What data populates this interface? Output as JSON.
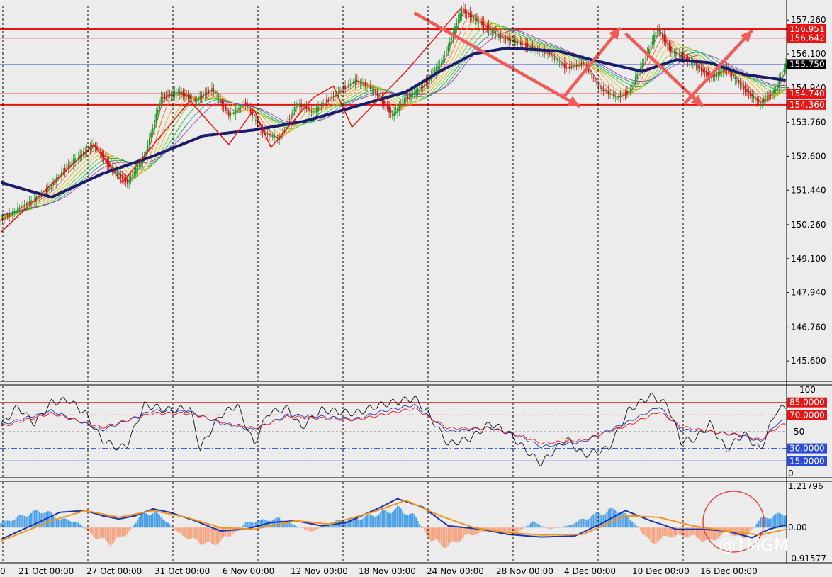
{
  "colors": {
    "background": "#ececec",
    "grid": "#000000",
    "hline_red": "#e61414",
    "hline_blue": "#2a4bd8",
    "arrow": "#f25a5a",
    "ma_slow": "#1c1c6e",
    "macd_line": "#1d34b0",
    "signal_line": "#f0961e",
    "hist_pos": "#4aa0e6",
    "hist_neg": "#f4a582",
    "bull": "#1a9a2a",
    "bear": "#c81414"
  },
  "price_axis": {
    "ticks": [
      "157.260",
      "156.100",
      "154.940",
      "153.760",
      "152.600",
      "151.440",
      "150.260",
      "149.100",
      "147.940",
      "146.760",
      "145.600"
    ],
    "range": [
      144.9,
      157.75
    ]
  },
  "price_levels": [
    {
      "label": "156.951",
      "value": 156.951,
      "bold": true
    },
    {
      "label": "156.642",
      "value": 156.642,
      "bold": false
    },
    {
      "label": "154.740",
      "value": 154.74,
      "bold": false
    },
    {
      "label": "154.360",
      "value": 154.36,
      "bold": true
    }
  ],
  "current_price": {
    "label": "155.750",
    "value": 155.75
  },
  "x_axis": {
    "labels": [
      "21 Oct 00:00",
      "27 Oct 00:00",
      "31 Oct 00:00",
      "6 Nov 00:00",
      "12 Nov 00:00",
      "18 Nov 00:00",
      "24 Nov 00:00",
      "28 Nov 00:00",
      "4 Dec 00:00",
      "10 Dec 00:00",
      "16 Dec 00:00"
    ],
    "first_label": "0"
  },
  "stoch_axis": {
    "labels": [
      "100",
      "50",
      "0"
    ],
    "levels": [
      {
        "label": "85.0000",
        "value": 85,
        "color": "#e61414",
        "style": "solid"
      },
      {
        "label": "70.0000",
        "value": 70,
        "color": "#e61414",
        "style": "dashdot"
      },
      {
        "label": "30.0000",
        "value": 30,
        "color": "#2a4bd8",
        "style": "dashdot"
      },
      {
        "label": "15.0000",
        "value": 15,
        "color": "#2a4bd8",
        "style": "solid"
      }
    ]
  },
  "macd_axis": {
    "labels": [
      "1.21796",
      "0.00",
      "-0.91577"
    ]
  },
  "watermark": "@TMGM",
  "chart_data": [
    {
      "type": "candlestick",
      "title": "",
      "xlabel": "",
      "ylabel": "",
      "ylim": [
        144.9,
        157.75
      ],
      "x": [
        "21 Oct",
        "27 Oct",
        "31 Oct",
        "6 Nov",
        "12 Nov",
        "18 Nov",
        "24 Nov",
        "28 Nov",
        "4 Dec",
        "10 Dec",
        "16 Dec"
      ],
      "anchors_close": [
        [
          0,
          150.4
        ],
        [
          10,
          150.8
        ],
        [
          25,
          151.3
        ],
        [
          40,
          152.3
        ],
        [
          55,
          153.0
        ],
        [
          65,
          152.2
        ],
        [
          75,
          151.7
        ],
        [
          85,
          152.6
        ],
        [
          95,
          154.6
        ],
        [
          105,
          154.8
        ],
        [
          115,
          154.5
        ],
        [
          125,
          154.9
        ],
        [
          135,
          154.0
        ],
        [
          145,
          154.4
        ],
        [
          155,
          153.4
        ],
        [
          165,
          153.2
        ],
        [
          175,
          154.4
        ],
        [
          185,
          154.1
        ],
        [
          195,
          154.6
        ],
        [
          210,
          155.2
        ],
        [
          220,
          154.9
        ],
        [
          232,
          154.0
        ],
        [
          240,
          154.6
        ],
        [
          250,
          155.0
        ],
        [
          262,
          155.9
        ],
        [
          273,
          157.6
        ],
        [
          283,
          157.2
        ],
        [
          295,
          156.7
        ],
        [
          305,
          156.5
        ],
        [
          315,
          156.3
        ],
        [
          325,
          156.1
        ],
        [
          335,
          155.6
        ],
        [
          345,
          155.8
        ],
        [
          355,
          154.9
        ],
        [
          365,
          154.6
        ],
        [
          372,
          154.8
        ],
        [
          382,
          156.0
        ],
        [
          389,
          156.95
        ],
        [
          397,
          156.2
        ],
        [
          410,
          155.8
        ],
        [
          420,
          155.3
        ],
        [
          430,
          155.6
        ],
        [
          440,
          154.9
        ],
        [
          450,
          154.4
        ],
        [
          459,
          154.9
        ],
        [
          465,
          155.75
        ]
      ],
      "moving_average_slow": [
        [
          0,
          151.7
        ],
        [
          30,
          151.2
        ],
        [
          60,
          152.0
        ],
        [
          90,
          152.6
        ],
        [
          120,
          153.3
        ],
        [
          150,
          153.5
        ],
        [
          180,
          153.8
        ],
        [
          210,
          154.3
        ],
        [
          240,
          154.8
        ],
        [
          260,
          155.5
        ],
        [
          280,
          156.1
        ],
        [
          300,
          156.3
        ],
        [
          330,
          156.2
        ],
        [
          350,
          155.9
        ],
        [
          380,
          155.5
        ],
        [
          400,
          155.9
        ],
        [
          420,
          155.8
        ],
        [
          440,
          155.4
        ],
        [
          465,
          155.2
        ]
      ]
    },
    {
      "type": "line",
      "title": "",
      "ylim": [
        0,
        100
      ],
      "series": [
        {
          "color": "#111111",
          "anchors": [
            [
              0,
              58
            ],
            [
              10,
              80
            ],
            [
              20,
              60
            ],
            [
              30,
              85
            ],
            [
              40,
              88
            ],
            [
              50,
              72
            ],
            [
              60,
              40
            ],
            [
              70,
              30
            ],
            [
              75,
              35
            ],
            [
              85,
              82
            ],
            [
              100,
              76
            ],
            [
              112,
              78
            ],
            [
              118,
              30
            ],
            [
              130,
              70
            ],
            [
              140,
              82
            ],
            [
              150,
              35
            ],
            [
              158,
              72
            ],
            [
              170,
              78
            ],
            [
              178,
              55
            ],
            [
              190,
              76
            ],
            [
              210,
              72
            ],
            [
              225,
              82
            ],
            [
              245,
              90
            ],
            [
              252,
              75
            ],
            [
              265,
              35
            ],
            [
              278,
              42
            ],
            [
              290,
              60
            ],
            [
              300,
              50
            ],
            [
              310,
              30
            ],
            [
              320,
              12
            ],
            [
              335,
              42
            ],
            [
              345,
              22
            ],
            [
              360,
              30
            ],
            [
              372,
              76
            ],
            [
              385,
              93
            ],
            [
              395,
              82
            ],
            [
              403,
              38
            ],
            [
              412,
              42
            ],
            [
              420,
              60
            ],
            [
              430,
              28
            ],
            [
              440,
              48
            ],
            [
              450,
              28
            ],
            [
              459,
              74
            ],
            [
              465,
              80
            ]
          ]
        },
        {
          "color": "#1d34b0",
          "anchors": [
            [
              0,
              58
            ],
            [
              30,
              75
            ],
            [
              60,
              52
            ],
            [
              90,
              75
            ],
            [
              112,
              74
            ],
            [
              130,
              60
            ],
            [
              150,
              52
            ],
            [
              170,
              70
            ],
            [
              190,
              68
            ],
            [
              210,
              65
            ],
            [
              225,
              74
            ],
            [
              245,
              82
            ],
            [
              265,
              50
            ],
            [
              290,
              55
            ],
            [
              310,
              42
            ],
            [
              320,
              32
            ],
            [
              345,
              38
            ],
            [
              372,
              62
            ],
            [
              390,
              80
            ],
            [
              403,
              52
            ],
            [
              420,
              50
            ],
            [
              440,
              45
            ],
            [
              450,
              38
            ],
            [
              459,
              58
            ],
            [
              465,
              65
            ]
          ]
        },
        {
          "color": "#e61414",
          "anchors": [
            [
              0,
              56
            ],
            [
              30,
              72
            ],
            [
              60,
              55
            ],
            [
              90,
              72
            ],
            [
              112,
              72
            ],
            [
              130,
              62
            ],
            [
              150,
              54
            ],
            [
              170,
              68
            ],
            [
              190,
              66
            ],
            [
              210,
              64
            ],
            [
              225,
              70
            ],
            [
              245,
              78
            ],
            [
              265,
              54
            ],
            [
              290,
              54
            ],
            [
              310,
              44
            ],
            [
              320,
              36
            ],
            [
              345,
              40
            ],
            [
              372,
              58
            ],
            [
              390,
              74
            ],
            [
              403,
              56
            ],
            [
              420,
              50
            ],
            [
              440,
              46
            ],
            [
              450,
              40
            ],
            [
              459,
              54
            ],
            [
              465,
              60
            ]
          ]
        }
      ]
    },
    {
      "type": "bar",
      "title": "",
      "ylim": [
        -0.91577,
        1.21796
      ],
      "histogram": [
        [
          0,
          0.15
        ],
        [
          15,
          0.45
        ],
        [
          25,
          0.6
        ],
        [
          35,
          0.3
        ],
        [
          45,
          0.2
        ],
        [
          55,
          -0.3
        ],
        [
          65,
          -0.55
        ],
        [
          75,
          -0.2
        ],
        [
          85,
          0.55
        ],
        [
          95,
          0.4
        ],
        [
          105,
          -0.2
        ],
        [
          115,
          -0.45
        ],
        [
          125,
          -0.6
        ],
        [
          135,
          -0.3
        ],
        [
          145,
          0.15
        ],
        [
          155,
          0.25
        ],
        [
          165,
          0.3
        ],
        [
          175,
          0.05
        ],
        [
          185,
          -0.15
        ],
        [
          195,
          0.2
        ],
        [
          215,
          0.35
        ],
        [
          235,
          0.65
        ],
        [
          245,
          0.4
        ],
        [
          255,
          -0.45
        ],
        [
          265,
          -0.65
        ],
        [
          275,
          -0.3
        ],
        [
          290,
          -0.1
        ],
        [
          305,
          -0.2
        ],
        [
          315,
          0.2
        ],
        [
          325,
          -0.05
        ],
        [
          335,
          0.05
        ],
        [
          350,
          0.4
        ],
        [
          365,
          0.65
        ],
        [
          375,
          0.2
        ],
        [
          385,
          -0.55
        ],
        [
          395,
          -0.3
        ],
        [
          410,
          -0.3
        ],
        [
          420,
          -0.5
        ],
        [
          430,
          -0.15
        ],
        [
          440,
          -0.4
        ],
        [
          450,
          0.3
        ],
        [
          465,
          0.5
        ]
      ],
      "series": [
        {
          "name": "",
          "color": "#1d34b0",
          "anchors": [
            [
              0,
              -0.35
            ],
            [
              20,
              0.1
            ],
            [
              35,
              0.45
            ],
            [
              50,
              0.5
            ],
            [
              60,
              0.35
            ],
            [
              70,
              0.25
            ],
            [
              80,
              0.35
            ],
            [
              90,
              0.55
            ],
            [
              100,
              0.45
            ],
            [
              115,
              0.2
            ],
            [
              130,
              -0.1
            ],
            [
              145,
              -0.05
            ],
            [
              160,
              0.15
            ],
            [
              175,
              0.2
            ],
            [
              190,
              0.05
            ],
            [
              205,
              0.15
            ],
            [
              225,
              0.6
            ],
            [
              235,
              0.85
            ],
            [
              250,
              0.6
            ],
            [
              265,
              0.05
            ],
            [
              285,
              -0.05
            ],
            [
              300,
              -0.2
            ],
            [
              320,
              -0.28
            ],
            [
              340,
              -0.25
            ],
            [
              355,
              0.1
            ],
            [
              370,
              0.5
            ],
            [
              385,
              0.2
            ],
            [
              400,
              -0.05
            ],
            [
              415,
              -0.05
            ],
            [
              430,
              -0.1
            ],
            [
              445,
              -0.3
            ],
            [
              455,
              -0.05
            ],
            [
              465,
              0.08
            ]
          ]
        },
        {
          "name": "",
          "color": "#f0961e",
          "anchors": [
            [
              0,
              -0.4
            ],
            [
              30,
              0.2
            ],
            [
              50,
              0.5
            ],
            [
              70,
              0.3
            ],
            [
              90,
              0.5
            ],
            [
              110,
              0.3
            ],
            [
              130,
              0.0
            ],
            [
              150,
              -0.05
            ],
            [
              175,
              0.2
            ],
            [
              195,
              0.1
            ],
            [
              220,
              0.45
            ],
            [
              240,
              0.8
            ],
            [
              260,
              0.35
            ],
            [
              280,
              0.0
            ],
            [
              300,
              -0.15
            ],
            [
              320,
              -0.22
            ],
            [
              345,
              -0.2
            ],
            [
              370,
              0.35
            ],
            [
              390,
              0.3
            ],
            [
              410,
              0.05
            ],
            [
              430,
              -0.1
            ],
            [
              450,
              -0.22
            ],
            [
              465,
              -0.05
            ]
          ]
        }
      ],
      "annotation": "circle"
    }
  ]
}
